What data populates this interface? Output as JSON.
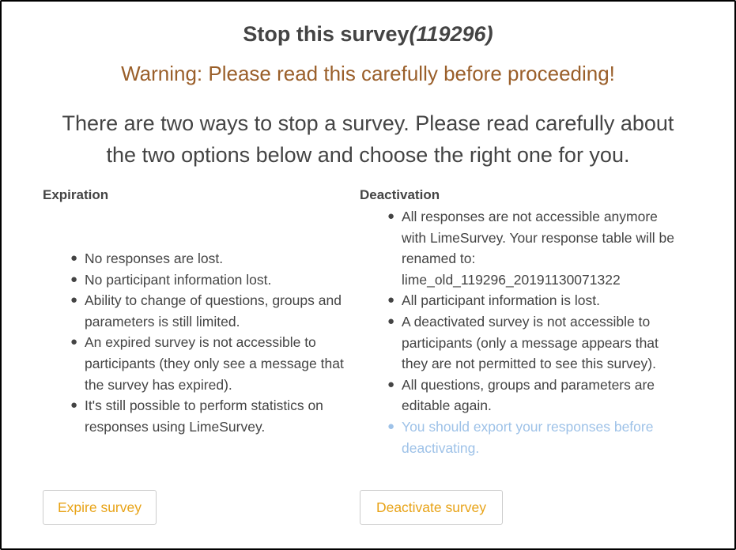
{
  "dialog": {
    "title": "Stop this survey",
    "survey_id": "(119296)",
    "warning": "Warning: Please read this carefully before proceeding!",
    "intro": "There are two ways to stop a survey. Please read carefully about the two options below and choose the right one for you."
  },
  "expiration": {
    "heading": "Expiration",
    "items": [
      "No responses are lost.",
      "No participant information lost.",
      "Ability to change of questions, groups and parameters is still limited.",
      "An expired survey is not accessible to participants (they only see a message that the survey has expired).",
      "It's still possible to perform statistics on responses using LimeSurvey."
    ],
    "button_label": "Expire survey"
  },
  "deactivation": {
    "heading": "Deactivation",
    "items": [
      "All responses are not accessible anymore with LimeSurvey. Your response table will be renamed to: lime_old_119296_20191130071322",
      "All participant information is lost.",
      "A deactivated survey is not accessible to participants (only a message appears that they are not permitted to see this survey).",
      "All questions, groups and parameters are editable again.",
      "You should export your responses before deactivating."
    ],
    "button_label": "Deactivate survey"
  },
  "colors": {
    "warning": "#9a5f2a",
    "notice": "#9ec2e8",
    "button_text": "#e8a317"
  }
}
